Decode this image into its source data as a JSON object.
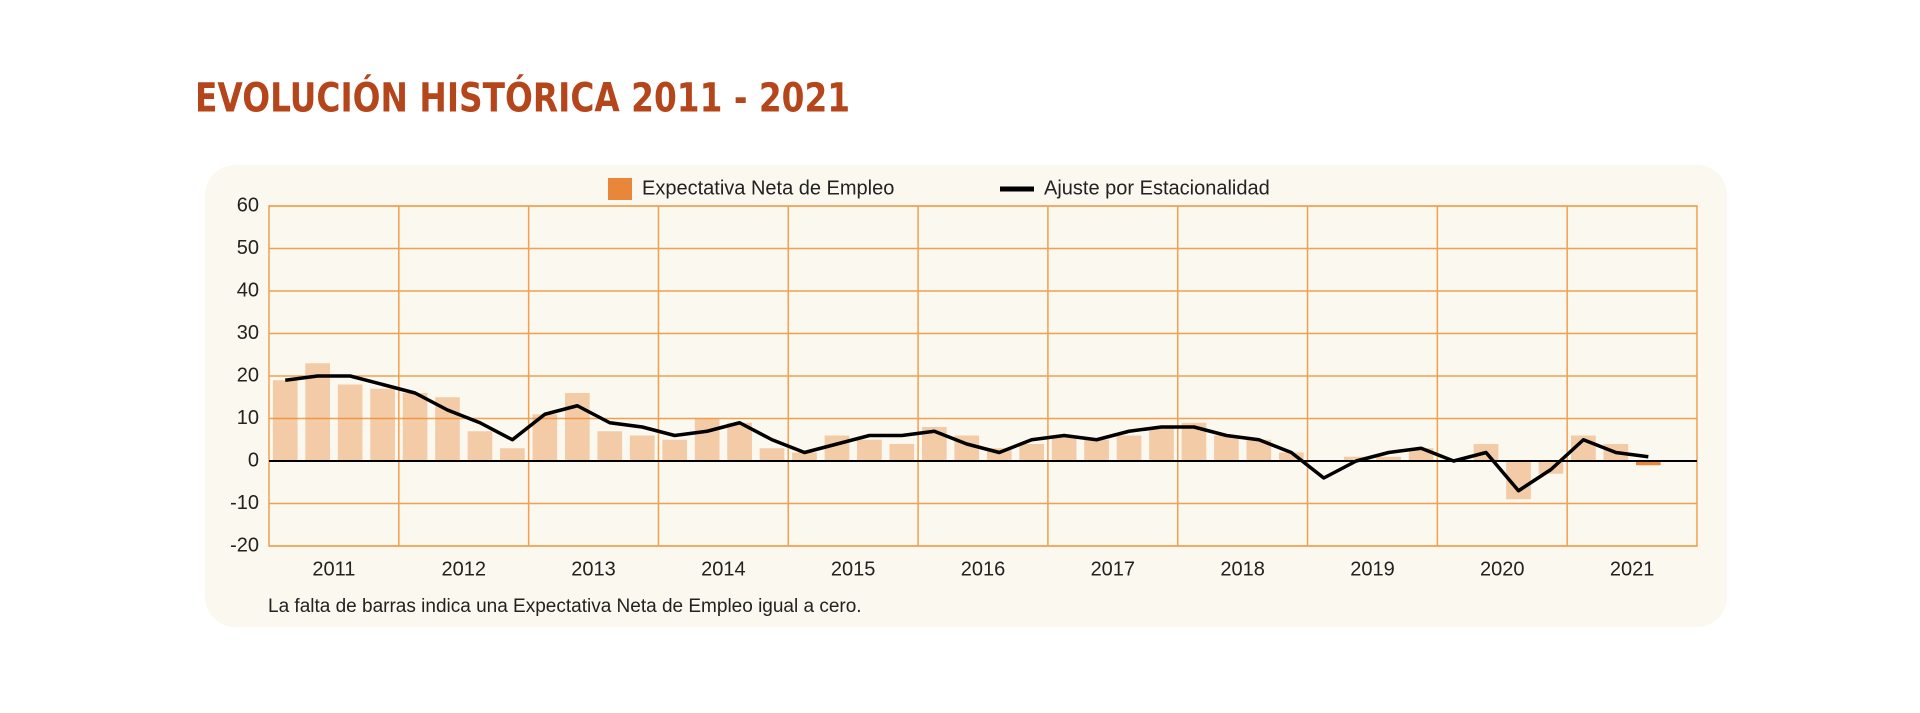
{
  "chart_data": {
    "type": "bar_line",
    "title": "EVOLUCIÓN HISTÓRICA 2011 - 2021",
    "note": "La falta de barras indica una Expectativa Neta de Empleo igual a cero.",
    "categories": [
      null,
      "2011",
      null,
      null,
      null,
      "2012",
      null,
      null,
      null,
      "2013",
      null,
      null,
      null,
      "2014",
      null,
      null,
      null,
      "2015",
      null,
      null,
      null,
      "2016",
      null,
      null,
      null,
      "2017",
      null,
      null,
      null,
      "2018",
      null,
      null,
      null,
      "2019",
      null,
      null,
      null,
      "2020",
      null,
      null,
      null,
      "2021",
      null
    ],
    "series": [
      {
        "name": "Expectativa Neta de Empleo",
        "color": "#e8873a",
        "type": "bar",
        "values": [
          19,
          23,
          18,
          17,
          16,
          15,
          7,
          3,
          11,
          16,
          7,
          6,
          5,
          10,
          9,
          3,
          2,
          6,
          5,
          4,
          8,
          6,
          3,
          4,
          6,
          5,
          6,
          8,
          9,
          6,
          5,
          2,
          0,
          1,
          1,
          3,
          0,
          4,
          -9,
          -3,
          6,
          4,
          -1
        ]
      },
      {
        "name": "Ajuste por Estacionalidad",
        "color": "#000000",
        "type": "line",
        "values": [
          19,
          20,
          20,
          18,
          16,
          12,
          9,
          5,
          11,
          13,
          9,
          8,
          6,
          7,
          9,
          5,
          2,
          4,
          6,
          6,
          7,
          4,
          2,
          5,
          6,
          5,
          7,
          8,
          8,
          6,
          5,
          2,
          -4,
          0,
          2,
          3,
          0,
          2,
          -7,
          -2,
          5,
          2,
          1
        ]
      }
    ],
    "ylim": [
      -20,
      60
    ],
    "yticks": [
      -20,
      -10,
      0,
      10,
      20,
      30,
      40,
      50,
      60
    ],
    "grid": true
  }
}
